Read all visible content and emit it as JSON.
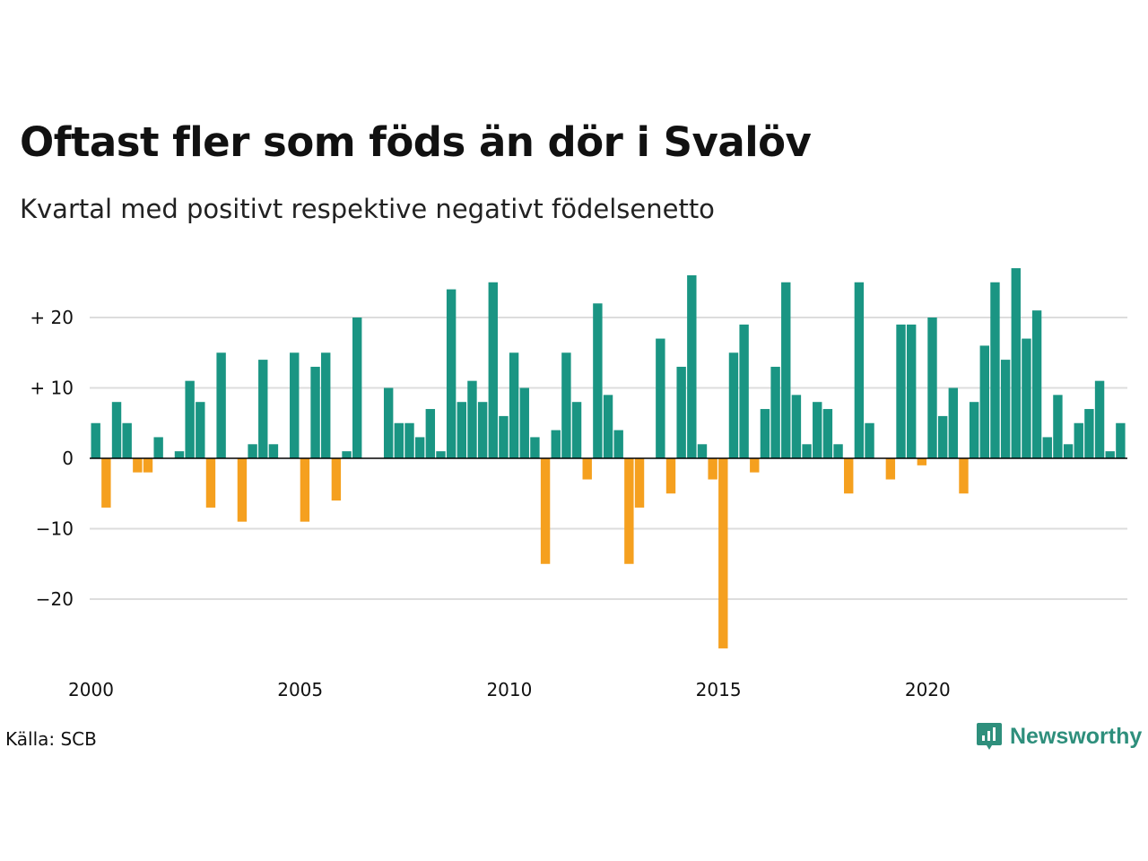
{
  "title": "Oftast fler som föds än dör i Svalöv",
  "subtitle": "Kvartal med positivt respektive negativt födelsenetto",
  "source": "Källa: SCB",
  "brand": {
    "name": "Newsworthy",
    "icon": "newsworthy-logo-icon",
    "color": "#2e8f7c"
  },
  "colors": {
    "positive": "#1a9583",
    "negative": "#f5a01f",
    "grid": "#dddddd",
    "zero": "#000000"
  },
  "chart_data": {
    "type": "bar",
    "title": "Oftast fler som föds än dör i Svalöv",
    "subtitle": "Kvartal med positivt respektive negativt födelsenetto",
    "xlabel": "",
    "ylabel": "",
    "x_start_year": 2000,
    "periods_per_year": 4,
    "ylim": [
      -27,
      27
    ],
    "y_ticks": [
      20,
      10,
      0,
      -10,
      -20
    ],
    "y_tick_labels": [
      "+ 20",
      "+ 10",
      "0",
      "−10",
      "−20"
    ],
    "x_tick_labels": [
      "2000",
      "2005",
      "2010",
      "2015",
      "2020"
    ],
    "grid": true,
    "values": [
      5,
      -7,
      8,
      5,
      -2,
      -2,
      3,
      0,
      1,
      11,
      8,
      -7,
      15,
      0,
      -9,
      2,
      14,
      2,
      0,
      15,
      -9,
      13,
      15,
      -6,
      1,
      20,
      0,
      0,
      10,
      5,
      5,
      3,
      7,
      1,
      24,
      8,
      11,
      8,
      25,
      6,
      15,
      10,
      3,
      -15,
      4,
      15,
      8,
      -3,
      22,
      9,
      4,
      -15,
      -7,
      0,
      17,
      -5,
      13,
      26,
      2,
      -3,
      -27,
      15,
      19,
      -2,
      7,
      13,
      25,
      9,
      2,
      8,
      7,
      2,
      -5,
      25,
      5,
      0,
      -3,
      19,
      19,
      -1,
      20,
      6,
      10,
      -5,
      8,
      16,
      25,
      14,
      27,
      17,
      21,
      3,
      9,
      2,
      5,
      7,
      11,
      1,
      5
    ]
  }
}
